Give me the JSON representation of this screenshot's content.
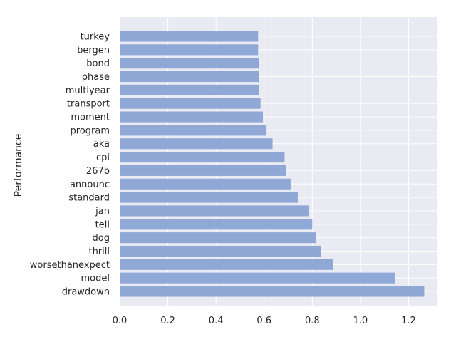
{
  "chart_data": {
    "type": "bar",
    "orientation": "horizontal",
    "categories": [
      "drawdown",
      "model",
      "worsethanexpect",
      "thrill",
      "dog",
      "tell",
      "jan",
      "standard",
      "announc",
      "267b",
      "cpi",
      "aka",
      "program",
      "moment",
      "transport",
      "multiyear",
      "phase",
      "bond",
      "bergen",
      "turkey"
    ],
    "values": [
      1.265,
      1.145,
      0.885,
      0.835,
      0.815,
      0.8,
      0.785,
      0.74,
      0.71,
      0.69,
      0.685,
      0.635,
      0.61,
      0.595,
      0.585,
      0.58,
      0.58,
      0.58,
      0.575,
      0.575
    ],
    "title": "",
    "xlabel": "",
    "ylabel": "Performance",
    "xlim": [
      0,
      1.32
    ],
    "xticks": [
      "0.0",
      "0.2",
      "0.4",
      "0.6",
      "0.8",
      "1.0",
      "1.2"
    ],
    "grid": true,
    "colors": {
      "bar": "#8fa8d6",
      "plot_background": "#eaeaf2",
      "grid": "#ffffff",
      "text": "#262626"
    }
  }
}
